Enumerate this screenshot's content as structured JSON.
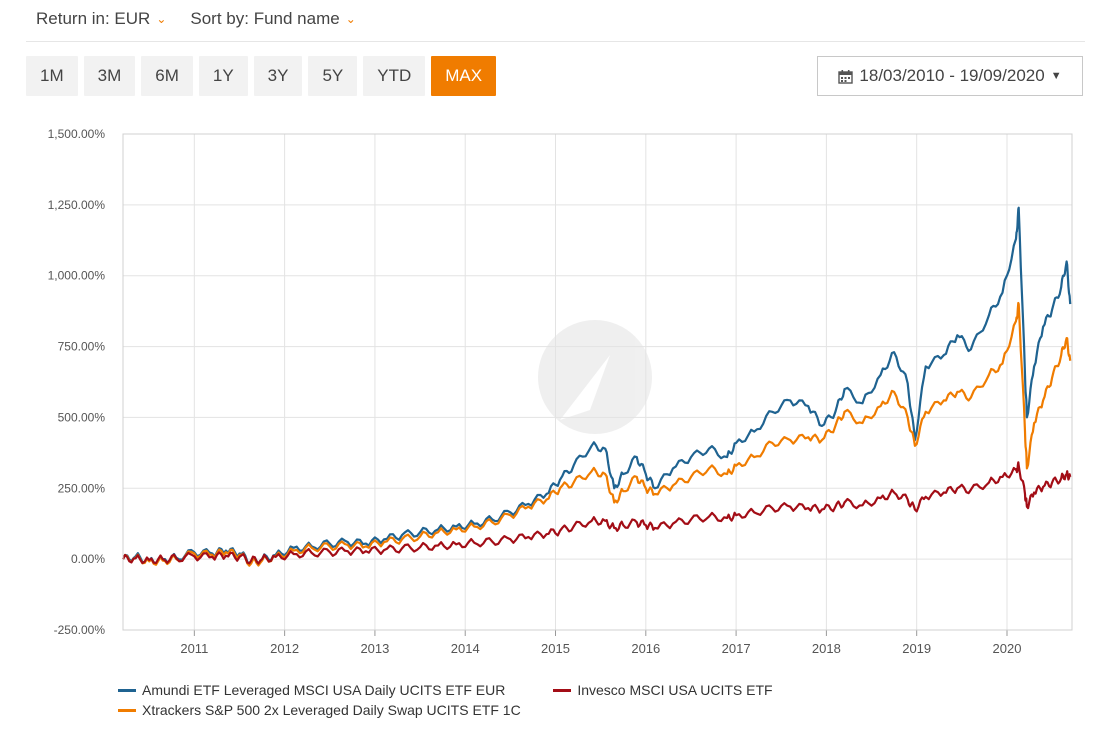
{
  "controls": {
    "return_label": "Return in: EUR",
    "sort_label": "Sort by: Fund name",
    "periods": [
      "1M",
      "3M",
      "6M",
      "1Y",
      "3Y",
      "5Y",
      "YTD",
      "MAX"
    ],
    "active_period": "MAX",
    "date_range": "18/03/2010 - 19/09/2020"
  },
  "colors": {
    "accent": "#f07c00",
    "amundi": "#1f6391",
    "xtrackers": "#f07c00",
    "invesco": "#a30d16"
  },
  "chart_data": {
    "type": "line",
    "title": "",
    "xlabel": "",
    "ylabel": "",
    "ylim": [
      -250,
      1500
    ],
    "xlim": [
      2010.21,
      2020.72
    ],
    "y_ticks": [
      "1,500.00%",
      "1,250.00%",
      "1,000.00%",
      "750.00%",
      "500.00%",
      "250.00%",
      "0.00%",
      "-250.00%"
    ],
    "y_tick_values": [
      1500,
      1250,
      1000,
      750,
      500,
      250,
      0,
      -250
    ],
    "x_ticks": [
      "2011",
      "2012",
      "2013",
      "2014",
      "2015",
      "2016",
      "2017",
      "2018",
      "2019",
      "2020"
    ],
    "x_tick_values": [
      2011,
      2012,
      2013,
      2014,
      2015,
      2016,
      2017,
      2018,
      2019,
      2020
    ],
    "grid": true,
    "legend_position": "bottom",
    "series": [
      {
        "name": "Amundi ETF Leveraged MSCI USA Daily UCITS ETF EUR",
        "color_key": "amundi",
        "x": [
          2010.21,
          2010.35,
          2010.5,
          2010.65,
          2010.8,
          2011.0,
          2011.2,
          2011.35,
          2011.5,
          2011.63,
          2011.75,
          2011.9,
          2012.1,
          2012.3,
          2012.5,
          2012.7,
          2012.9,
          2013.1,
          2013.3,
          2013.5,
          2013.7,
          2013.9,
          2014.1,
          2014.3,
          2014.5,
          2014.7,
          2014.9,
          2015.05,
          2015.2,
          2015.4,
          2015.55,
          2015.65,
          2015.75,
          2015.9,
          2016.0,
          2016.1,
          2016.3,
          2016.5,
          2016.7,
          2016.9,
          2017.0,
          2017.2,
          2017.4,
          2017.6,
          2017.8,
          2017.95,
          2018.1,
          2018.2,
          2018.4,
          2018.6,
          2018.75,
          2018.9,
          2018.98,
          2019.1,
          2019.3,
          2019.45,
          2019.6,
          2019.8,
          2019.95,
          2020.1,
          2020.13,
          2020.2,
          2020.22,
          2020.3,
          2020.4,
          2020.5,
          2020.6,
          2020.66,
          2020.7
        ],
        "y": [
          0,
          10,
          -5,
          0,
          5,
          25,
          20,
          30,
          20,
          -10,
          0,
          15,
          40,
          45,
          55,
          60,
          55,
          70,
          85,
          95,
          105,
          115,
          125,
          140,
          165,
          195,
          230,
          280,
          330,
          400,
          390,
          250,
          300,
          360,
          300,
          250,
          320,
          360,
          390,
          360,
          410,
          450,
          520,
          560,
          540,
          470,
          520,
          600,
          550,
          650,
          730,
          620,
          420,
          680,
          720,
          790,
          740,
          860,
          940,
          1130,
          1240,
          650,
          500,
          680,
          820,
          880,
          960,
          1050,
          900
        ]
      },
      {
        "name": "Xtrackers S&P 500 2x Leveraged Daily Swap UCITS ETF 1C",
        "color_key": "xtrackers",
        "x": [
          2010.21,
          2010.35,
          2010.5,
          2010.65,
          2010.8,
          2011.0,
          2011.2,
          2011.35,
          2011.5,
          2011.63,
          2011.75,
          2011.9,
          2012.1,
          2012.3,
          2012.5,
          2012.7,
          2012.9,
          2013.1,
          2013.3,
          2013.5,
          2013.7,
          2013.9,
          2014.1,
          2014.3,
          2014.5,
          2014.7,
          2014.9,
          2015.05,
          2015.2,
          2015.4,
          2015.55,
          2015.65,
          2015.75,
          2015.9,
          2016.0,
          2016.1,
          2016.3,
          2016.5,
          2016.7,
          2016.9,
          2017.0,
          2017.2,
          2017.4,
          2017.6,
          2017.8,
          2017.95,
          2018.1,
          2018.2,
          2018.4,
          2018.6,
          2018.75,
          2018.9,
          2018.98,
          2019.1,
          2019.3,
          2019.45,
          2019.6,
          2019.8,
          2019.95,
          2020.1,
          2020.13,
          2020.2,
          2020.22,
          2020.3,
          2020.4,
          2020.5,
          2020.6,
          2020.66,
          2020.7
        ],
        "y": [
          0,
          5,
          -8,
          -5,
          0,
          20,
          15,
          25,
          15,
          -15,
          -5,
          10,
          30,
          40,
          45,
          50,
          45,
          60,
          70,
          80,
          95,
          105,
          115,
          130,
          155,
          185,
          210,
          250,
          270,
          310,
          300,
          200,
          240,
          290,
          250,
          230,
          260,
          290,
          320,
          300,
          330,
          360,
          410,
          420,
          430,
          420,
          470,
          520,
          480,
          540,
          590,
          500,
          400,
          520,
          560,
          590,
          570,
          650,
          690,
          840,
          900,
          450,
          320,
          480,
          560,
          640,
          720,
          780,
          700
        ]
      },
      {
        "name": "Invesco MSCI USA UCITS ETF",
        "color_key": "invesco",
        "x": [
          2010.21,
          2010.35,
          2010.5,
          2010.65,
          2010.8,
          2011.0,
          2011.2,
          2011.35,
          2011.5,
          2011.63,
          2011.75,
          2011.9,
          2012.1,
          2012.3,
          2012.5,
          2012.7,
          2012.9,
          2013.1,
          2013.3,
          2013.5,
          2013.7,
          2013.9,
          2014.1,
          2014.3,
          2014.5,
          2014.7,
          2014.9,
          2015.05,
          2015.2,
          2015.4,
          2015.55,
          2015.65,
          2015.75,
          2015.9,
          2016.0,
          2016.1,
          2016.3,
          2016.5,
          2016.7,
          2016.9,
          2017.0,
          2017.2,
          2017.4,
          2017.6,
          2017.8,
          2017.95,
          2018.1,
          2018.2,
          2018.4,
          2018.6,
          2018.75,
          2018.9,
          2018.98,
          2019.1,
          2019.3,
          2019.45,
          2019.6,
          2019.8,
          2019.95,
          2020.1,
          2020.13,
          2020.2,
          2020.22,
          2020.3,
          2020.4,
          2020.5,
          2020.6,
          2020.66,
          2020.7
        ],
        "y": [
          0,
          3,
          -3,
          0,
          3,
          10,
          8,
          12,
          8,
          -5,
          0,
          8,
          18,
          22,
          25,
          28,
          28,
          32,
          38,
          42,
          48,
          52,
          58,
          62,
          70,
          78,
          88,
          100,
          115,
          135,
          135,
          110,
          120,
          130,
          120,
          110,
          125,
          140,
          150,
          145,
          155,
          165,
          180,
          185,
          180,
          175,
          185,
          200,
          190,
          215,
          235,
          210,
          175,
          220,
          235,
          250,
          245,
          270,
          290,
          315,
          330,
          230,
          185,
          235,
          255,
          270,
          285,
          300,
          290
        ]
      }
    ]
  }
}
